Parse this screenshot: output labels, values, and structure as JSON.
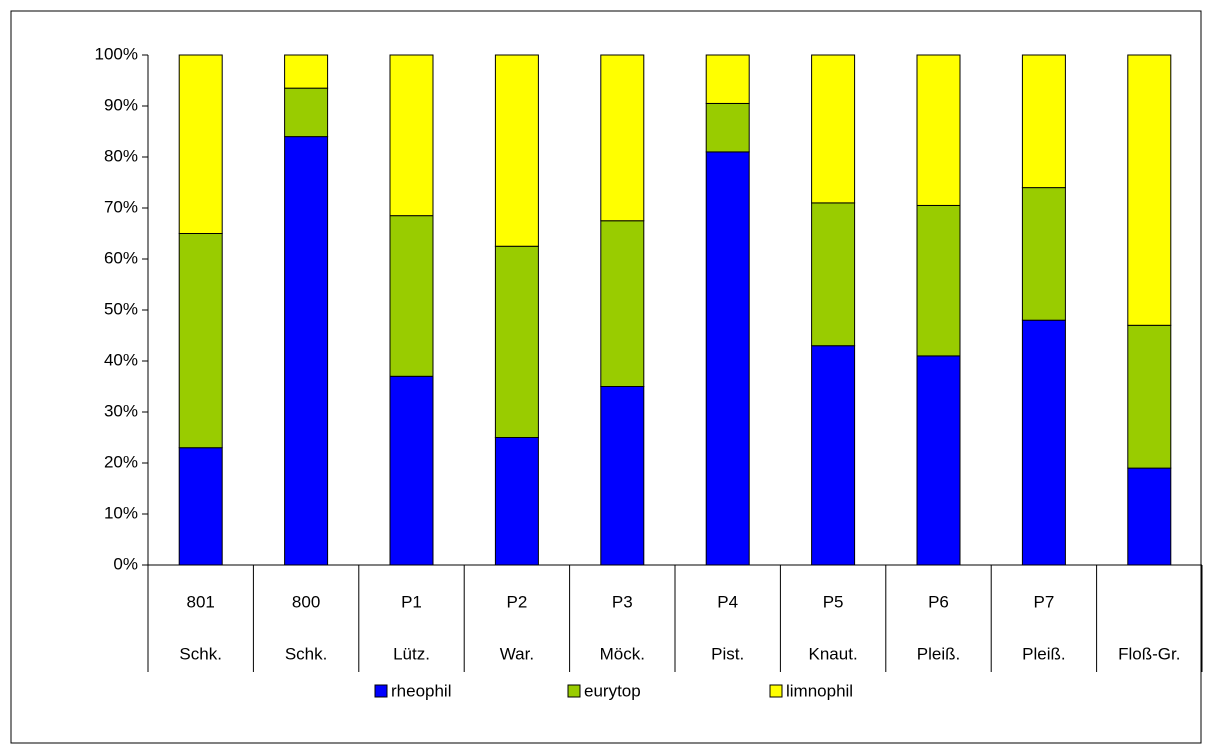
{
  "chart_data": {
    "type": "stacked_bar_percent",
    "categories": [
      "801",
      "800",
      "P1",
      "P2",
      "P3",
      "P4",
      "P5",
      "P6",
      "P7",
      null
    ],
    "subcategories": [
      "Schk.",
      "Schk.",
      "Lütz.",
      "War.",
      "Möck.",
      "Pist.",
      "Knaut.",
      "Pleiß.",
      "Pleiß.",
      "Floß-Gr."
    ],
    "series": [
      {
        "name": "rheophil",
        "color": "#0000ff",
        "values": [
          23,
          84,
          37,
          25,
          35,
          81,
          43,
          41,
          48,
          19
        ]
      },
      {
        "name": "eurytop",
        "color": "#99cc00",
        "values": [
          42,
          9.5,
          31.5,
          37.5,
          32.5,
          9.5,
          28,
          29.5,
          26,
          28
        ]
      },
      {
        "name": "limnophil",
        "color": "#ffff00",
        "values": [
          35,
          6.5,
          31.5,
          37.5,
          32.5,
          9.5,
          29,
          29.5,
          26,
          53
        ]
      }
    ],
    "ylim": [
      0,
      100
    ],
    "yticks": [
      {
        "value": 0,
        "label": "0%"
      },
      {
        "value": 10,
        "label": "10%"
      },
      {
        "value": 20,
        "label": "20%"
      },
      {
        "value": 30,
        "label": "30%"
      },
      {
        "value": 40,
        "label": "40%"
      },
      {
        "value": 50,
        "label": "50%"
      },
      {
        "value": 60,
        "label": "60%"
      },
      {
        "value": 70,
        "label": "70%"
      },
      {
        "value": 80,
        "label": "80%"
      },
      {
        "value": 90,
        "label": "90%"
      },
      {
        "value": 100,
        "label": "100%"
      }
    ],
    "legend": "bottom"
  }
}
